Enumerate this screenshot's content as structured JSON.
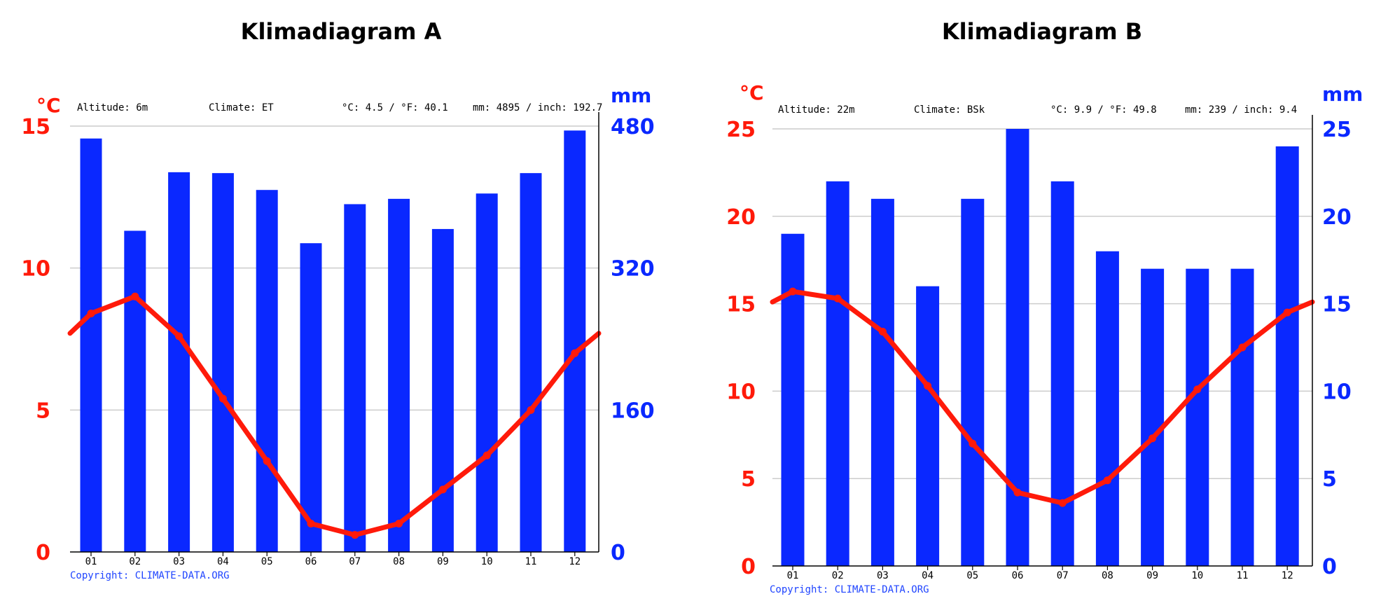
{
  "colors": {
    "precip": "#0a28ff",
    "temp": "#ff1a0a",
    "grid": "#cccccc",
    "axis": "#000000"
  },
  "chart_data": [
    {
      "type": "bar+line",
      "title": "Klimadiagram A",
      "info": {
        "altitude": "Altitude: 6m",
        "climate": "Climate: ET",
        "temp": "°C: 4.5 / °F: 40.1",
        "precip": "mm: 4895 / inch: 192.7"
      },
      "copyright": "Copyright: CLIMATE-DATA.ORG",
      "left_unit": "°C",
      "right_unit": "mm",
      "categories": [
        "01",
        "02",
        "03",
        "04",
        "05",
        "06",
        "07",
        "08",
        "09",
        "10",
        "11",
        "12"
      ],
      "ylim_left": [
        0,
        15
      ],
      "ylim_right": [
        0,
        480
      ],
      "left_ticks": [
        0,
        5,
        10,
        15
      ],
      "right_ticks": [
        0,
        160,
        320,
        480
      ],
      "series": [
        {
          "name": "Precipitation (mm)",
          "type": "bar",
          "axis": "right",
          "values": [
            466,
            362,
            428,
            427,
            408,
            348,
            392,
            398,
            364,
            404,
            427,
            475
          ]
        },
        {
          "name": "Temperature (°C)",
          "type": "line",
          "axis": "left",
          "edge_start": 7.7,
          "edge_end": 7.7,
          "values": [
            8.4,
            9.0,
            7.6,
            5.4,
            3.2,
            1.0,
            0.6,
            1.0,
            2.2,
            3.4,
            5.0,
            7.0
          ]
        }
      ]
    },
    {
      "type": "bar+line",
      "title": "Klimadiagram B",
      "info": {
        "altitude": "Altitude: 22m",
        "climate": "Climate: BSk",
        "temp": "°C: 9.9 / °F: 49.8",
        "precip": "mm: 239 / inch: 9.4"
      },
      "copyright": "Copyright: CLIMATE-DATA.ORG",
      "left_unit": "°C",
      "right_unit": "mm",
      "categories": [
        "01",
        "02",
        "03",
        "04",
        "05",
        "06",
        "07",
        "08",
        "09",
        "10",
        "11",
        "12"
      ],
      "ylim_left": [
        0,
        25
      ],
      "ylim_right": [
        0,
        25
      ],
      "left_ticks": [
        0,
        5,
        10,
        15,
        20,
        25
      ],
      "right_ticks": [
        0,
        5,
        10,
        15,
        20,
        25
      ],
      "series": [
        {
          "name": "Precipitation (mm)",
          "type": "bar",
          "axis": "right",
          "values": [
            19,
            22,
            21,
            16,
            21,
            25,
            22,
            18,
            17,
            17,
            17,
            24
          ]
        },
        {
          "name": "Temperature (°C)",
          "type": "line",
          "axis": "left",
          "edge_start": 15.1,
          "edge_end": 15.1,
          "values": [
            15.7,
            15.3,
            13.4,
            10.3,
            7.0,
            4.2,
            3.6,
            4.9,
            7.3,
            10.1,
            12.5,
            14.5
          ]
        }
      ]
    }
  ]
}
